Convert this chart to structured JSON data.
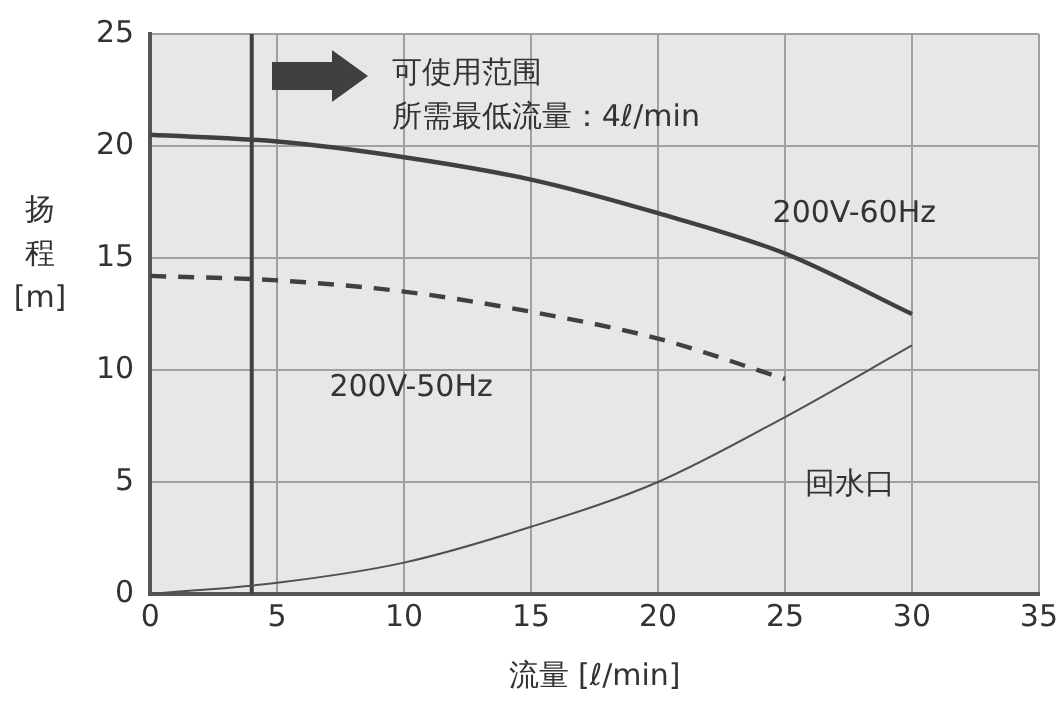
{
  "chart_data": {
    "type": "line",
    "xlabel": "流量 [ℓ/min]",
    "ylabel": "扬程 [m]",
    "x": [
      0,
      5,
      10,
      15,
      20,
      25,
      30
    ],
    "series": [
      {
        "name": "200V-60Hz",
        "color": "#404040",
        "values": [
          20.5,
          20.2,
          19.5,
          18.5,
          17.0,
          15.2,
          12.5
        ]
      },
      {
        "name": "200V-50Hz",
        "color": "#404040",
        "line_style": "dashed",
        "x": [
          0,
          5,
          10,
          15,
          20,
          25
        ],
        "values": [
          14.2,
          14.0,
          13.5,
          12.6,
          11.4,
          9.6
        ]
      },
      {
        "name": "回水口",
        "color": "#505050",
        "values": [
          0,
          0.5,
          1.4,
          3.0,
          5.0,
          7.9,
          11.1
        ]
      }
    ],
    "xlim": [
      0,
      35
    ],
    "xticks": [
      0,
      5,
      10,
      15,
      20,
      25,
      30,
      35
    ],
    "ylim": [
      0,
      25
    ],
    "yticks": [
      0,
      5,
      10,
      15,
      20,
      25
    ],
    "grid": true,
    "legend": false,
    "marker": "none",
    "line_style": "solid",
    "ref_lines": [
      {
        "axis": "x",
        "value": 4,
        "color": "#404040"
      }
    ],
    "annotations": [
      "可使用范围",
      "所需最低流量：4ℓ/min"
    ]
  }
}
